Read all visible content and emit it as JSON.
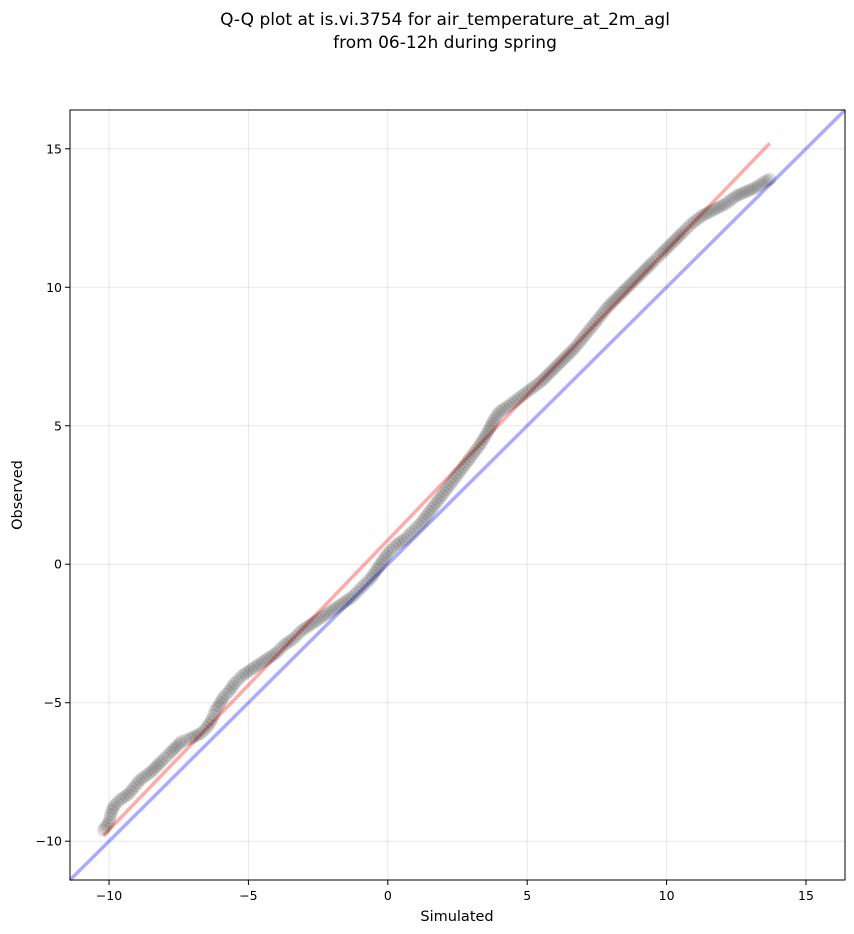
{
  "chart_data": {
    "type": "scatter",
    "title_lines": [
      "Q-Q plot at is.vi.3754 for air_temperature_at_2m_agl",
      "from 06-12h during spring"
    ],
    "xlabel": "Simulated",
    "ylabel": "Observed",
    "xlim": [
      -11.4,
      16.4
    ],
    "ylim": [
      -11.4,
      16.4
    ],
    "xticks": [
      -10,
      -5,
      0,
      5,
      10,
      15
    ],
    "yticks": [
      -10,
      -5,
      0,
      5,
      10,
      15
    ],
    "xtick_labels": [
      "−10",
      "−5",
      "0",
      "5",
      "10",
      "15"
    ],
    "ytick_labels": [
      "−10",
      "−5",
      "0",
      "5",
      "10",
      "15"
    ],
    "grid": true,
    "colors": {
      "points": "#000000",
      "fit_line": "#ff0000",
      "identity_line": "#0000ff",
      "grid": "#b0b0b0"
    },
    "fit_line": {
      "x": [
        -10.2,
        13.7
      ],
      "y": [
        -9.8,
        15.2
      ]
    },
    "identity_line": {
      "x": [
        -11.4,
        16.4
      ],
      "y": [
        -11.4,
        16.4
      ]
    },
    "points": [
      [
        -10.2,
        -9.6
      ],
      [
        -10.0,
        -9.3
      ],
      [
        -9.9,
        -8.9
      ],
      [
        -9.8,
        -8.7
      ],
      [
        -9.6,
        -8.5
      ],
      [
        -9.3,
        -8.3
      ],
      [
        -8.9,
        -7.8
      ],
      [
        -8.5,
        -7.5
      ],
      [
        -8.1,
        -7.1
      ],
      [
        -7.8,
        -6.8
      ],
      [
        -7.4,
        -6.4
      ],
      [
        -7.1,
        -6.3
      ],
      [
        -6.9,
        -6.2
      ],
      [
        -6.7,
        -6.1
      ],
      [
        -6.5,
        -5.9
      ],
      [
        -6.3,
        -5.6
      ],
      [
        -6.2,
        -5.3
      ],
      [
        -6.0,
        -5.0
      ],
      [
        -5.9,
        -4.8
      ],
      [
        -5.7,
        -4.6
      ],
      [
        -5.5,
        -4.3
      ],
      [
        -5.2,
        -4.0
      ],
      [
        -4.9,
        -3.8
      ],
      [
        -4.6,
        -3.6
      ],
      [
        -4.3,
        -3.4
      ],
      [
        -4.0,
        -3.2
      ],
      [
        -3.7,
        -2.9
      ],
      [
        -3.4,
        -2.7
      ],
      [
        -3.1,
        -2.4
      ],
      [
        -2.8,
        -2.2
      ],
      [
        -2.5,
        -2.0
      ],
      [
        -2.2,
        -1.8
      ],
      [
        -1.9,
        -1.6
      ],
      [
        -1.6,
        -1.4
      ],
      [
        -1.3,
        -1.2
      ],
      [
        -1.0,
        -0.9
      ],
      [
        -0.8,
        -0.7
      ],
      [
        -0.6,
        -0.5
      ],
      [
        -0.4,
        -0.2
      ],
      [
        -0.2,
        0.1
      ],
      [
        0.0,
        0.4
      ],
      [
        0.3,
        0.7
      ],
      [
        0.6,
        0.9
      ],
      [
        0.9,
        1.2
      ],
      [
        1.2,
        1.5
      ],
      [
        1.5,
        1.9
      ],
      [
        1.8,
        2.3
      ],
      [
        2.1,
        2.7
      ],
      [
        2.4,
        3.1
      ],
      [
        2.7,
        3.5
      ],
      [
        3.0,
        3.9
      ],
      [
        3.3,
        4.3
      ],
      [
        3.6,
        4.8
      ],
      [
        3.8,
        5.2
      ],
      [
        4.0,
        5.5
      ],
      [
        4.3,
        5.7
      ],
      [
        4.7,
        6.0
      ],
      [
        5.1,
        6.3
      ],
      [
        5.5,
        6.6
      ],
      [
        5.9,
        7.0
      ],
      [
        6.3,
        7.4
      ],
      [
        6.7,
        7.8
      ],
      [
        7.1,
        8.3
      ],
      [
        7.5,
        8.8
      ],
      [
        7.9,
        9.3
      ],
      [
        8.3,
        9.7
      ],
      [
        8.7,
        10.1
      ],
      [
        9.1,
        10.5
      ],
      [
        9.5,
        10.9
      ],
      [
        9.8,
        11.2
      ],
      [
        10.2,
        11.6
      ],
      [
        10.6,
        12.0
      ],
      [
        10.9,
        12.3
      ],
      [
        11.3,
        12.6
      ],
      [
        11.7,
        12.8
      ],
      [
        12.1,
        13.0
      ],
      [
        12.5,
        13.3
      ],
      [
        13.2,
        13.6
      ],
      [
        13.5,
        13.8
      ],
      [
        13.7,
        13.9
      ]
    ]
  }
}
